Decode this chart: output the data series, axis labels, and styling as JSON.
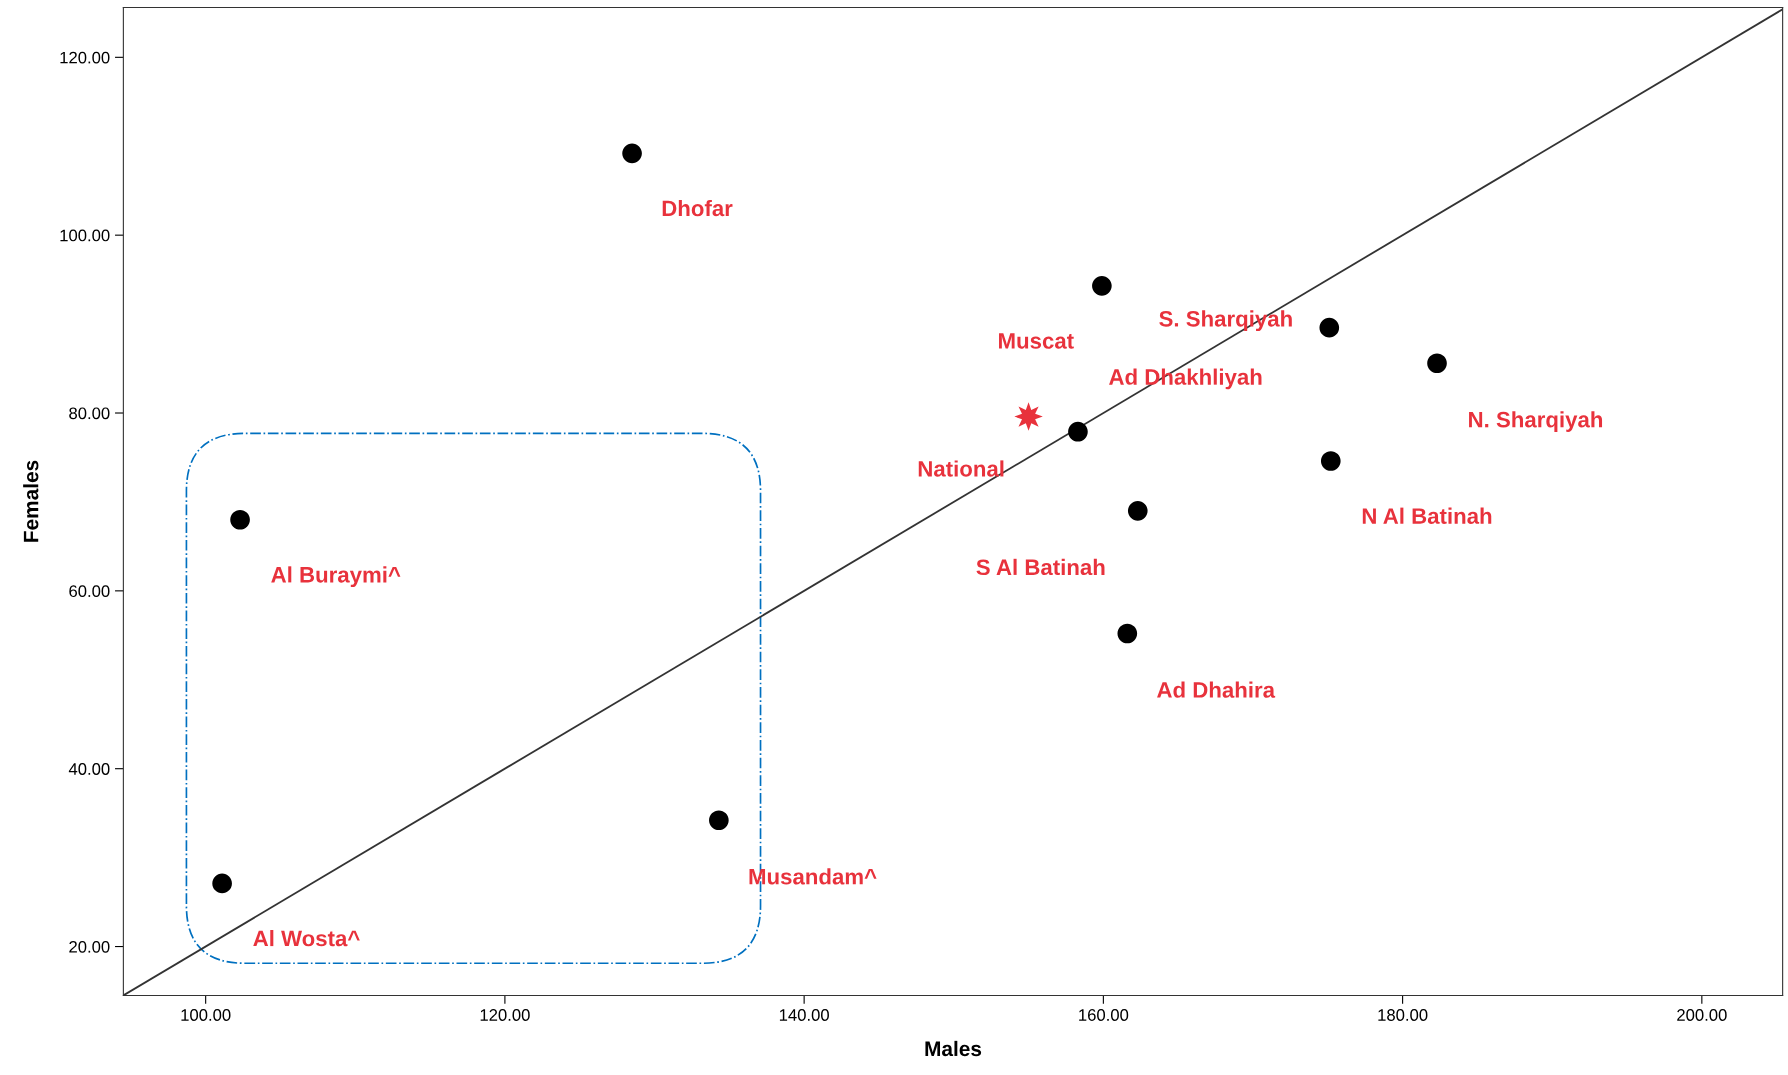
{
  "chart_data": {
    "type": "scatter",
    "xlabel": "Males",
    "ylabel": "Females",
    "xlim": [
      94.5,
      205.4
    ],
    "ylim": [
      14.5,
      125.6
    ],
    "xticks": [
      {
        "value": 100,
        "label": "100.00"
      },
      {
        "value": 120,
        "label": "120.00"
      },
      {
        "value": 140,
        "label": "140.00"
      },
      {
        "value": 160,
        "label": "160.00"
      },
      {
        "value": 180,
        "label": "180.00"
      },
      {
        "value": 200,
        "label": "200.00"
      }
    ],
    "yticks": [
      {
        "value": 20,
        "label": "20.00"
      },
      {
        "value": 40,
        "label": "40.00"
      },
      {
        "value": 60,
        "label": "60.00"
      },
      {
        "value": 80,
        "label": "80.00"
      },
      {
        "value": 100,
        "label": "100.00"
      },
      {
        "value": 120,
        "label": "120.00"
      }
    ],
    "grid": false,
    "legend": false,
    "series": [
      {
        "type": "line",
        "color": "#333333",
        "x": [
          94.5,
          205.4
        ],
        "values": [
          14.5,
          125.4
        ],
        "marker": "none",
        "line_style": "solid"
      },
      {
        "color": "#000000",
        "marker": "circle",
        "x": [
          128.5,
          102.3,
          101.1,
          134.3,
          159.9,
          175.1,
          182.3,
          158.3,
          175.2,
          162.3,
          161.6
        ],
        "values": [
          109.2,
          68.0,
          27.1,
          34.2,
          94.3,
          89.6,
          85.6,
          77.9,
          74.6,
          69.0,
          55.2
        ]
      },
      {
        "color": "#e8323c",
        "marker": "star",
        "x": [
          155.0
        ],
        "values": [
          79.6
        ]
      }
    ],
    "annotations": [
      {
        "text": "Dhofar",
        "x": 128.5,
        "y": 109.2
      },
      {
        "text": "Al Buraymi^",
        "x": 102.3,
        "y": 68.0
      },
      {
        "text": "Al Wosta^",
        "x": 101.1,
        "y": 27.1
      },
      {
        "text": "Musandam^",
        "x": 134.3,
        "y": 34.2
      },
      {
        "text": "Muscat",
        "x": 159.9,
        "y": 94.3
      },
      {
        "text": "S. Sharqiyah",
        "x": 175.1,
        "y": 89.6
      },
      {
        "text": "N. Sharqiyah",
        "x": 182.3,
        "y": 85.6
      },
      {
        "text": "Ad Dhakhliyah",
        "x": 158.3,
        "y": 77.9
      },
      {
        "text": "National",
        "x": 155.0,
        "y": 79.6
      },
      {
        "text": "N Al Batinah",
        "x": 175.2,
        "y": 74.6
      },
      {
        "text": "S Al Batinah",
        "x": 162.3,
        "y": 69.0
      },
      {
        "text": "Ad Dhahira",
        "x": 161.6,
        "y": 55.2
      }
    ]
  }
}
